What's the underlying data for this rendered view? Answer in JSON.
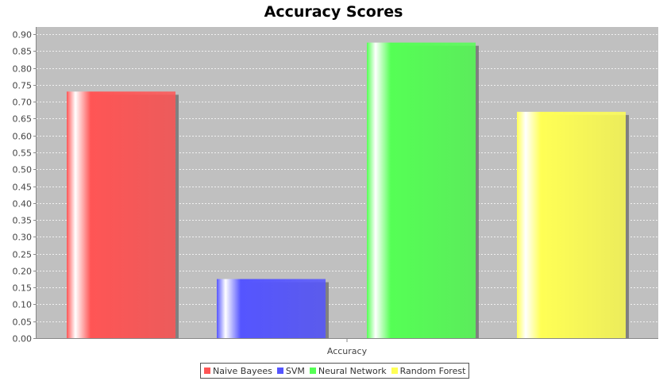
{
  "chart_data": {
    "type": "bar",
    "title": "Accuracy Scores",
    "xlabel": "",
    "ylabel": "",
    "categories": [
      "Accuracy"
    ],
    "series": [
      {
        "name": "Naive Bayees",
        "values": [
          0.73
        ],
        "color": "#ff5555"
      },
      {
        "name": "SVM",
        "values": [
          0.175
        ],
        "color": "#5555ff"
      },
      {
        "name": "Neural Network",
        "values": [
          0.875
        ],
        "color": "#55ff55"
      },
      {
        "name": "Random Forest",
        "values": [
          0.67
        ],
        "color": "#ffff55"
      }
    ],
    "ylim": [
      0,
      0.92
    ],
    "yticks": [
      "0.00",
      "0.05",
      "0.10",
      "0.15",
      "0.20",
      "0.25",
      "0.30",
      "0.35",
      "0.40",
      "0.45",
      "0.50",
      "0.55",
      "0.60",
      "0.65",
      "0.70",
      "0.75",
      "0.80",
      "0.85",
      "0.90"
    ],
    "grid": true,
    "legend_position": "bottom",
    "plot_background": "#c0c0c0"
  }
}
